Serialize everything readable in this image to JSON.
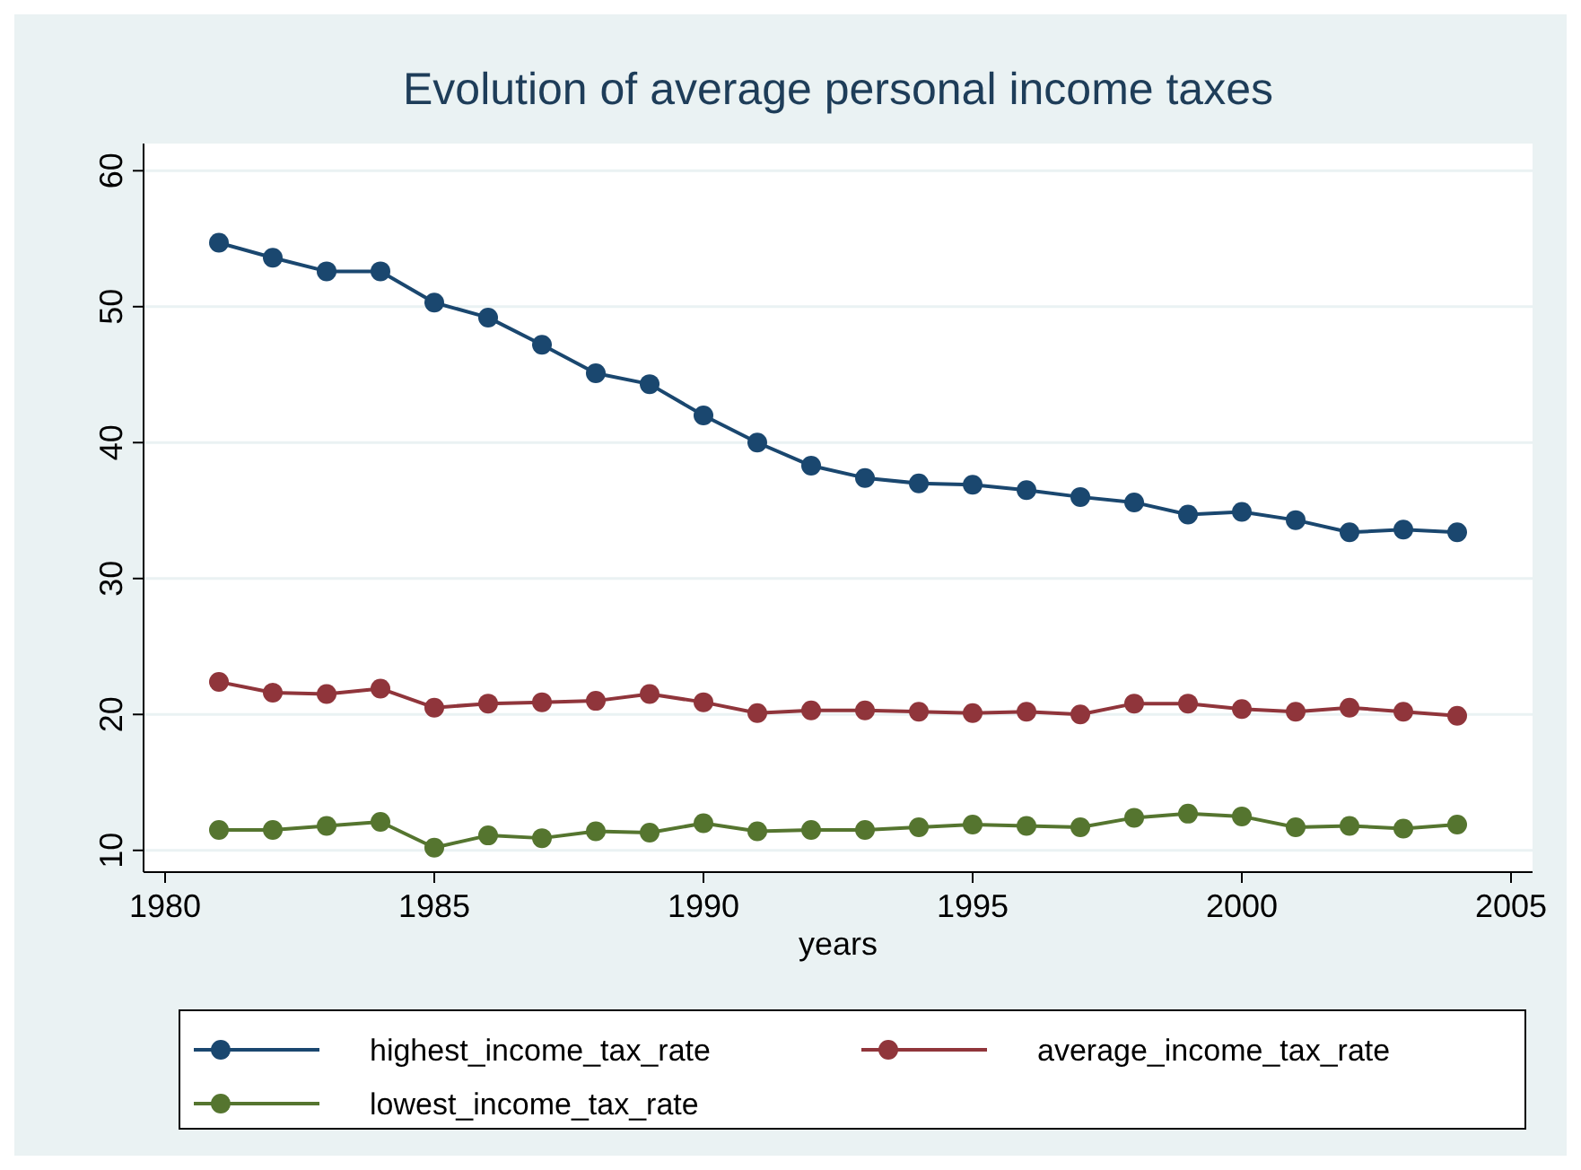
{
  "chart_data": {
    "type": "line",
    "title": "Evolution of average personal income taxes",
    "xlabel": "years",
    "x": [
      1981,
      1982,
      1983,
      1984,
      1985,
      1986,
      1987,
      1988,
      1989,
      1990,
      1991,
      1992,
      1993,
      1994,
      1995,
      1996,
      1997,
      1998,
      1999,
      2000,
      2001,
      2002,
      2003,
      2004
    ],
    "series": [
      {
        "name": "highest_income_tax_rate",
        "color": "#1a476f",
        "values": [
          54.7,
          53.6,
          52.6,
          52.6,
          50.3,
          49.2,
          47.2,
          45.1,
          44.3,
          42.0,
          40.0,
          38.3,
          37.4,
          37.0,
          36.9,
          36.5,
          36.0,
          35.6,
          34.7,
          34.9,
          34.3,
          33.4,
          33.6,
          33.4
        ]
      },
      {
        "name": "average_income_tax_rate",
        "color": "#90353b",
        "values": [
          22.4,
          21.6,
          21.5,
          21.9,
          20.5,
          20.8,
          20.9,
          21.0,
          21.5,
          20.9,
          20.1,
          20.3,
          20.3,
          20.2,
          20.1,
          20.2,
          20.0,
          20.8,
          20.8,
          20.4,
          20.2,
          20.5,
          20.2,
          19.9
        ]
      },
      {
        "name": "lowest_income_tax_rate",
        "color": "#55752f",
        "values": [
          11.5,
          11.5,
          11.8,
          12.1,
          10.2,
          11.1,
          10.9,
          11.4,
          11.3,
          12.0,
          11.4,
          11.5,
          11.5,
          11.7,
          11.9,
          11.8,
          11.7,
          12.4,
          12.7,
          12.5,
          11.7,
          11.8,
          11.6,
          11.9
        ]
      }
    ],
    "xlim": [
      1979.6,
      2005.4
    ],
    "xticks": [
      1980,
      1985,
      1990,
      1995,
      2000,
      2005
    ],
    "ylim": [
      8.4,
      62
    ],
    "yticks": [
      10,
      20,
      30,
      40,
      50,
      60
    ],
    "grid": "y",
    "legend": "bottom",
    "marker": "circle",
    "line_style": "solid"
  }
}
